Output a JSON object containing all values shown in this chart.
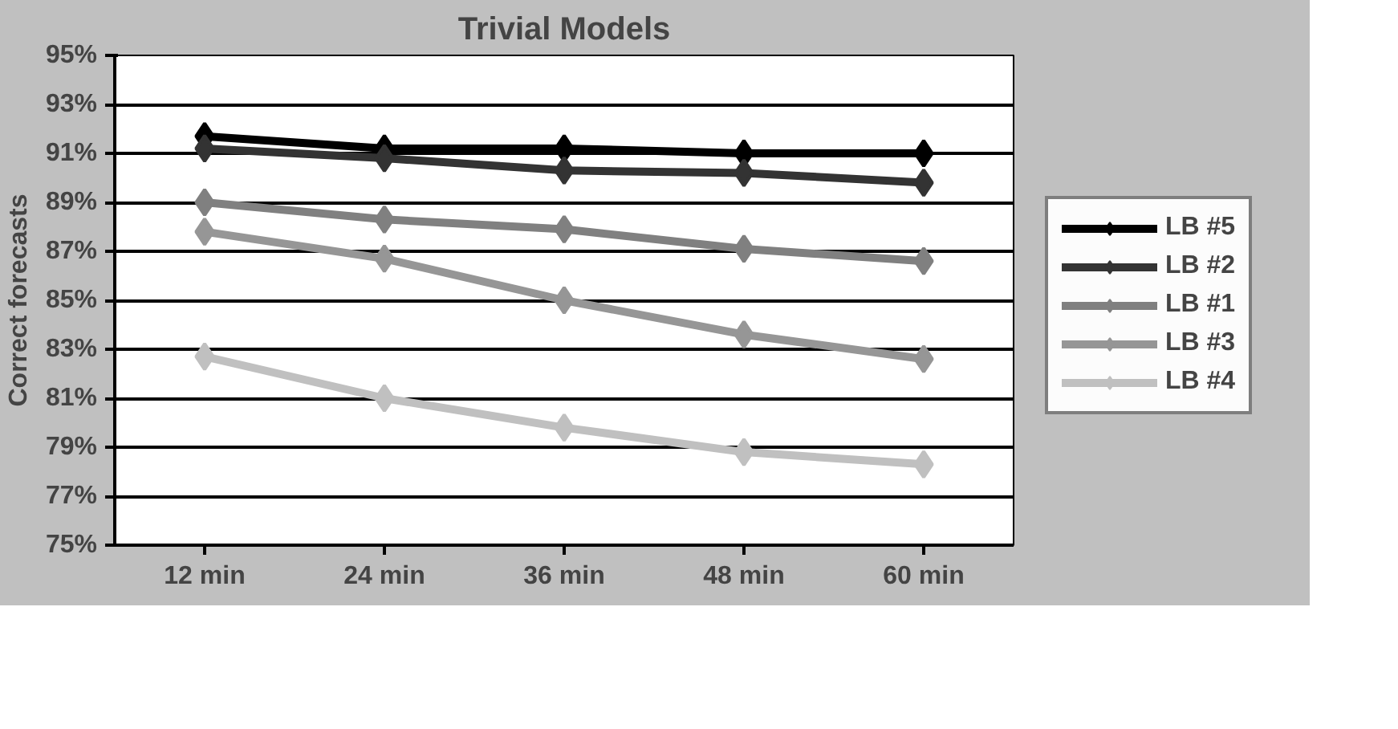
{
  "chart_data": {
    "type": "line",
    "title": "Trivial Models",
    "ylabel": "Correct forecasts",
    "categories": [
      "12 min",
      "24 min",
      "36 min",
      "48 min",
      "60 min"
    ],
    "series": [
      {
        "name": "LB #5",
        "color": "#000000",
        "values": [
          91.7,
          91.2,
          91.2,
          91.0,
          91.0
        ]
      },
      {
        "name": "LB #2",
        "color": "#333333",
        "values": [
          91.2,
          90.8,
          90.3,
          90.2,
          89.8
        ]
      },
      {
        "name": "LB #1",
        "color": "#808080",
        "values": [
          89.0,
          88.3,
          87.9,
          87.1,
          86.6
        ]
      },
      {
        "name": "LB #3",
        "color": "#969696",
        "values": [
          87.8,
          86.7,
          85.0,
          83.6,
          82.6
        ]
      },
      {
        "name": "LB #4",
        "color": "#c0c0c0",
        "values": [
          82.7,
          81.0,
          79.8,
          78.8,
          78.3
        ]
      }
    ],
    "ylim": [
      75,
      95
    ],
    "yticks": [
      {
        "value": 75,
        "label": "75%"
      },
      {
        "value": 77,
        "label": "77%"
      },
      {
        "value": 79,
        "label": "79%"
      },
      {
        "value": 81,
        "label": "81%"
      },
      {
        "value": 83,
        "label": "83%"
      },
      {
        "value": 85,
        "label": "85%"
      },
      {
        "value": 87,
        "label": "87%"
      },
      {
        "value": 89,
        "label": "89%"
      },
      {
        "value": 91,
        "label": "91%"
      },
      {
        "value": 93,
        "label": "93%"
      },
      {
        "value": 95,
        "label": "95%"
      }
    ],
    "grid": "y",
    "legend": "right",
    "marker": "diamond",
    "line_style": "solid"
  }
}
